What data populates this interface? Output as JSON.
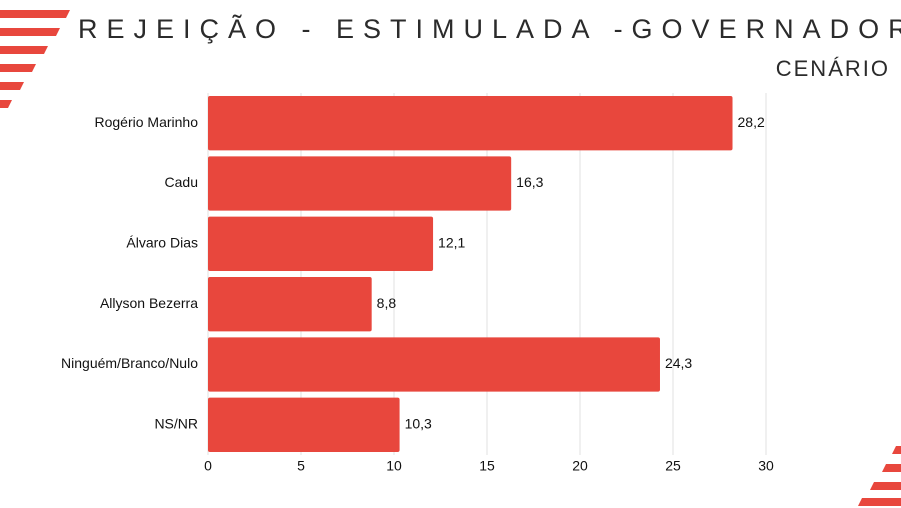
{
  "chart_data": {
    "type": "bar",
    "orientation": "horizontal",
    "title": "REJEIÇÃO - ESTIMULADA -GOVERNADOR",
    "subtitle": "CENÁRIO",
    "categories": [
      "Rogério Marinho",
      "Cadu",
      "Álvaro Dias",
      "Allyson Bezerra",
      "Ninguém/Branco/Nulo",
      "NS/NR"
    ],
    "values": [
      28.2,
      16.3,
      12.1,
      8.8,
      24.3,
      10.3
    ],
    "value_labels": [
      "28,2",
      "16,3",
      "12,1",
      "8,8",
      "24,3",
      "10,3"
    ],
    "color": "#e8473d",
    "xlim": [
      0,
      30
    ],
    "xticks": [
      0,
      5,
      10,
      15,
      20,
      25,
      30
    ],
    "grid": true
  }
}
